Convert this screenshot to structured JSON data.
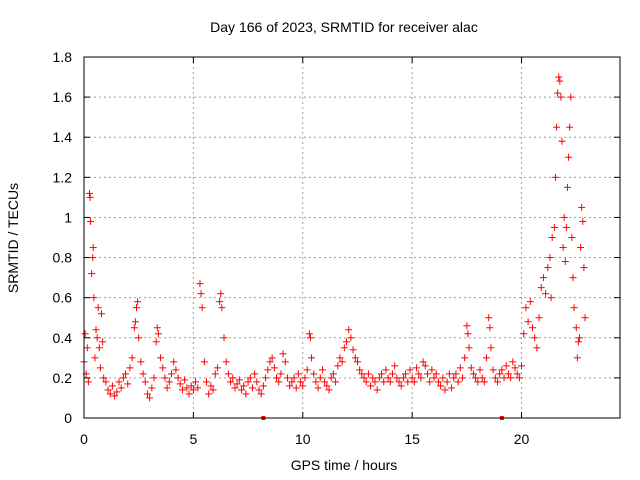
{
  "chart_data": {
    "type": "scatter",
    "title": "Day 166 of 2023, SRMTID for receiver alac",
    "xlabel": "GPS time / hours",
    "ylabel": "SRMTID / TECUs",
    "xlim": [
      0,
      24.5
    ],
    "ylim": [
      0,
      1.8
    ],
    "xticks": [
      "0",
      "5",
      "10",
      "15",
      "20"
    ],
    "xtick_values": [
      0,
      5,
      10,
      15,
      20
    ],
    "yticks": [
      "0",
      "0.2",
      "0.4",
      "0.6",
      "0.8",
      "1",
      "1.2",
      "1.4",
      "1.6",
      "1.8"
    ],
    "ytick_values": [
      0,
      0.2,
      0.4,
      0.6,
      0.8,
      1.0,
      1.2,
      1.4,
      1.6,
      1.8
    ],
    "grid": true,
    "marker": "+",
    "color": "#ff0000",
    "series": [
      {
        "name": "SRMTID",
        "points": [
          [
            0.0,
            0.28
          ],
          [
            0.05,
            0.42
          ],
          [
            0.1,
            0.22
          ],
          [
            0.15,
            0.35
          ],
          [
            0.2,
            0.18
          ],
          [
            0.25,
            1.12
          ],
          [
            0.28,
            1.1
          ],
          [
            0.3,
            0.98
          ],
          [
            0.35,
            0.72
          ],
          [
            0.4,
            0.8
          ],
          [
            0.42,
            0.85
          ],
          [
            0.45,
            0.6
          ],
          [
            0.5,
            0.3
          ],
          [
            0.55,
            0.44
          ],
          [
            0.6,
            0.4
          ],
          [
            0.65,
            0.55
          ],
          [
            0.7,
            0.35
          ],
          [
            0.75,
            0.25
          ],
          [
            0.8,
            0.52
          ],
          [
            0.85,
            0.38
          ],
          [
            0.9,
            0.2
          ],
          [
            1.0,
            0.18
          ],
          [
            1.1,
            0.14
          ],
          [
            1.2,
            0.12
          ],
          [
            1.3,
            0.16
          ],
          [
            1.4,
            0.11
          ],
          [
            1.5,
            0.13
          ],
          [
            1.6,
            0.18
          ],
          [
            1.7,
            0.15
          ],
          [
            1.8,
            0.2
          ],
          [
            1.9,
            0.22
          ],
          [
            2.0,
            0.17
          ],
          [
            2.1,
            0.25
          ],
          [
            2.2,
            0.3
          ],
          [
            2.3,
            0.45
          ],
          [
            2.35,
            0.48
          ],
          [
            2.4,
            0.55
          ],
          [
            2.45,
            0.58
          ],
          [
            2.5,
            0.4
          ],
          [
            2.6,
            0.28
          ],
          [
            2.7,
            0.22
          ],
          [
            2.8,
            0.18
          ],
          [
            2.9,
            0.12
          ],
          [
            3.0,
            0.1
          ],
          [
            3.1,
            0.15
          ],
          [
            3.2,
            0.2
          ],
          [
            3.3,
            0.38
          ],
          [
            3.35,
            0.45
          ],
          [
            3.4,
            0.42
          ],
          [
            3.5,
            0.3
          ],
          [
            3.6,
            0.25
          ],
          [
            3.7,
            0.2
          ],
          [
            3.8,
            0.15
          ],
          [
            3.9,
            0.18
          ],
          [
            4.0,
            0.22
          ],
          [
            4.1,
            0.28
          ],
          [
            4.2,
            0.24
          ],
          [
            4.3,
            0.2
          ],
          [
            4.4,
            0.17
          ],
          [
            4.5,
            0.14
          ],
          [
            4.6,
            0.19
          ],
          [
            4.7,
            0.15
          ],
          [
            4.8,
            0.12
          ],
          [
            4.9,
            0.16
          ],
          [
            5.0,
            0.14
          ],
          [
            5.1,
            0.18
          ],
          [
            5.2,
            0.15
          ],
          [
            5.3,
            0.67
          ],
          [
            5.35,
            0.62
          ],
          [
            5.4,
            0.55
          ],
          [
            5.5,
            0.28
          ],
          [
            5.6,
            0.18
          ],
          [
            5.7,
            0.12
          ],
          [
            5.8,
            0.16
          ],
          [
            5.9,
            0.14
          ],
          [
            6.0,
            0.22
          ],
          [
            6.1,
            0.25
          ],
          [
            6.2,
            0.58
          ],
          [
            6.25,
            0.62
          ],
          [
            6.3,
            0.55
          ],
          [
            6.4,
            0.4
          ],
          [
            6.5,
            0.28
          ],
          [
            6.6,
            0.22
          ],
          [
            6.7,
            0.18
          ],
          [
            6.8,
            0.2
          ],
          [
            6.9,
            0.15
          ],
          [
            7.0,
            0.17
          ],
          [
            7.1,
            0.19
          ],
          [
            7.2,
            0.14
          ],
          [
            7.3,
            0.16
          ],
          [
            7.4,
            0.12
          ],
          [
            7.5,
            0.18
          ],
          [
            7.6,
            0.2
          ],
          [
            7.7,
            0.15
          ],
          [
            7.8,
            0.22
          ],
          [
            7.9,
            0.18
          ],
          [
            8.0,
            0.14
          ],
          [
            8.1,
            0.12
          ],
          [
            8.2,
            0.16
          ],
          [
            8.3,
            0.2
          ],
          [
            8.4,
            0.24
          ],
          [
            8.5,
            0.28
          ],
          [
            8.6,
            0.3
          ],
          [
            8.7,
            0.25
          ],
          [
            8.8,
            0.2
          ],
          [
            8.9,
            0.18
          ],
          [
            9.0,
            0.22
          ],
          [
            9.1,
            0.32
          ],
          [
            9.2,
            0.28
          ],
          [
            9.3,
            0.2
          ],
          [
            9.4,
            0.16
          ],
          [
            9.5,
            0.18
          ],
          [
            9.6,
            0.2
          ],
          [
            9.7,
            0.15
          ],
          [
            9.8,
            0.22
          ],
          [
            9.9,
            0.18
          ],
          [
            10.0,
            0.16
          ],
          [
            10.1,
            0.2
          ],
          [
            10.2,
            0.24
          ],
          [
            10.3,
            0.42
          ],
          [
            10.35,
            0.4
          ],
          [
            10.4,
            0.3
          ],
          [
            10.5,
            0.22
          ],
          [
            10.6,
            0.18
          ],
          [
            10.7,
            0.15
          ],
          [
            10.8,
            0.2
          ],
          [
            10.9,
            0.24
          ],
          [
            11.0,
            0.18
          ],
          [
            11.1,
            0.16
          ],
          [
            11.2,
            0.14
          ],
          [
            11.3,
            0.2
          ],
          [
            11.4,
            0.22
          ],
          [
            11.5,
            0.18
          ],
          [
            11.6,
            0.26
          ],
          [
            11.7,
            0.3
          ],
          [
            11.8,
            0.28
          ],
          [
            11.9,
            0.35
          ],
          [
            12.0,
            0.38
          ],
          [
            12.1,
            0.44
          ],
          [
            12.2,
            0.4
          ],
          [
            12.3,
            0.34
          ],
          [
            12.4,
            0.3
          ],
          [
            12.5,
            0.28
          ],
          [
            12.6,
            0.24
          ],
          [
            12.7,
            0.22
          ],
          [
            12.8,
            0.2
          ],
          [
            12.9,
            0.18
          ],
          [
            13.0,
            0.22
          ],
          [
            13.1,
            0.16
          ],
          [
            13.2,
            0.2
          ],
          [
            13.3,
            0.18
          ],
          [
            13.4,
            0.14
          ],
          [
            13.5,
            0.2
          ],
          [
            13.6,
            0.22
          ],
          [
            13.7,
            0.18
          ],
          [
            13.8,
            0.24
          ],
          [
            13.9,
            0.2
          ],
          [
            14.0,
            0.18
          ],
          [
            14.1,
            0.22
          ],
          [
            14.2,
            0.26
          ],
          [
            14.3,
            0.2
          ],
          [
            14.4,
            0.18
          ],
          [
            14.5,
            0.16
          ],
          [
            14.6,
            0.2
          ],
          [
            14.7,
            0.22
          ],
          [
            14.8,
            0.18
          ],
          [
            14.9,
            0.24
          ],
          [
            15.0,
            0.2
          ],
          [
            15.1,
            0.18
          ],
          [
            15.2,
            0.25
          ],
          [
            15.3,
            0.22
          ],
          [
            15.4,
            0.2
          ],
          [
            15.5,
            0.28
          ],
          [
            15.6,
            0.26
          ],
          [
            15.7,
            0.22
          ],
          [
            15.8,
            0.18
          ],
          [
            15.9,
            0.24
          ],
          [
            16.0,
            0.2
          ],
          [
            16.1,
            0.22
          ],
          [
            16.2,
            0.18
          ],
          [
            16.3,
            0.16
          ],
          [
            16.4,
            0.2
          ],
          [
            16.5,
            0.14
          ],
          [
            16.6,
            0.18
          ],
          [
            16.7,
            0.22
          ],
          [
            16.8,
            0.15
          ],
          [
            16.9,
            0.2
          ],
          [
            17.0,
            0.22
          ],
          [
            17.1,
            0.18
          ],
          [
            17.2,
            0.25
          ],
          [
            17.3,
            0.2
          ],
          [
            17.4,
            0.3
          ],
          [
            17.5,
            0.46
          ],
          [
            17.55,
            0.42
          ],
          [
            17.6,
            0.35
          ],
          [
            17.7,
            0.25
          ],
          [
            17.8,
            0.22
          ],
          [
            17.9,
            0.2
          ],
          [
            18.0,
            0.18
          ],
          [
            18.1,
            0.24
          ],
          [
            18.2,
            0.2
          ],
          [
            18.3,
            0.18
          ],
          [
            18.4,
            0.3
          ],
          [
            18.5,
            0.5
          ],
          [
            18.55,
            0.45
          ],
          [
            18.6,
            0.35
          ],
          [
            18.7,
            0.24
          ],
          [
            18.8,
            0.2
          ],
          [
            18.9,
            0.18
          ],
          [
            19.0,
            0.22
          ],
          [
            19.1,
            0.24
          ],
          [
            19.2,
            0.2
          ],
          [
            19.3,
            0.26
          ],
          [
            19.4,
            0.22
          ],
          [
            19.5,
            0.2
          ],
          [
            19.6,
            0.28
          ],
          [
            19.7,
            0.25
          ],
          [
            19.8,
            0.22
          ],
          [
            19.9,
            0.2
          ],
          [
            20.0,
            0.26
          ],
          [
            20.1,
            0.42
          ],
          [
            20.2,
            0.55
          ],
          [
            20.3,
            0.48
          ],
          [
            20.4,
            0.58
          ],
          [
            20.5,
            0.45
          ],
          [
            20.6,
            0.4
          ],
          [
            20.7,
            0.35
          ],
          [
            20.8,
            0.5
          ],
          [
            20.9,
            0.65
          ],
          [
            21.0,
            0.7
          ],
          [
            21.1,
            0.62
          ],
          [
            21.2,
            0.75
          ],
          [
            21.3,
            0.8
          ],
          [
            21.35,
            0.6
          ],
          [
            21.4,
            0.9
          ],
          [
            21.5,
            0.95
          ],
          [
            21.55,
            1.2
          ],
          [
            21.6,
            1.45
          ],
          [
            21.65,
            1.62
          ],
          [
            21.7,
            1.7
          ],
          [
            21.75,
            1.68
          ],
          [
            21.8,
            1.6
          ],
          [
            21.85,
            1.38
          ],
          [
            21.9,
            0.85
          ],
          [
            21.95,
            1.0
          ],
          [
            22.0,
            0.78
          ],
          [
            22.05,
            0.95
          ],
          [
            22.1,
            1.15
          ],
          [
            22.15,
            1.3
          ],
          [
            22.2,
            1.45
          ],
          [
            22.25,
            1.6
          ],
          [
            22.3,
            0.9
          ],
          [
            22.35,
            0.7
          ],
          [
            22.4,
            0.55
          ],
          [
            22.5,
            0.45
          ],
          [
            22.55,
            0.3
          ],
          [
            22.6,
            0.38
          ],
          [
            22.65,
            0.4
          ],
          [
            22.7,
            0.85
          ],
          [
            22.75,
            1.05
          ],
          [
            22.8,
            0.98
          ],
          [
            22.85,
            0.75
          ],
          [
            22.9,
            0.5
          ]
        ]
      }
    ],
    "x_axis_markers": [
      8.2,
      19.1
    ]
  }
}
